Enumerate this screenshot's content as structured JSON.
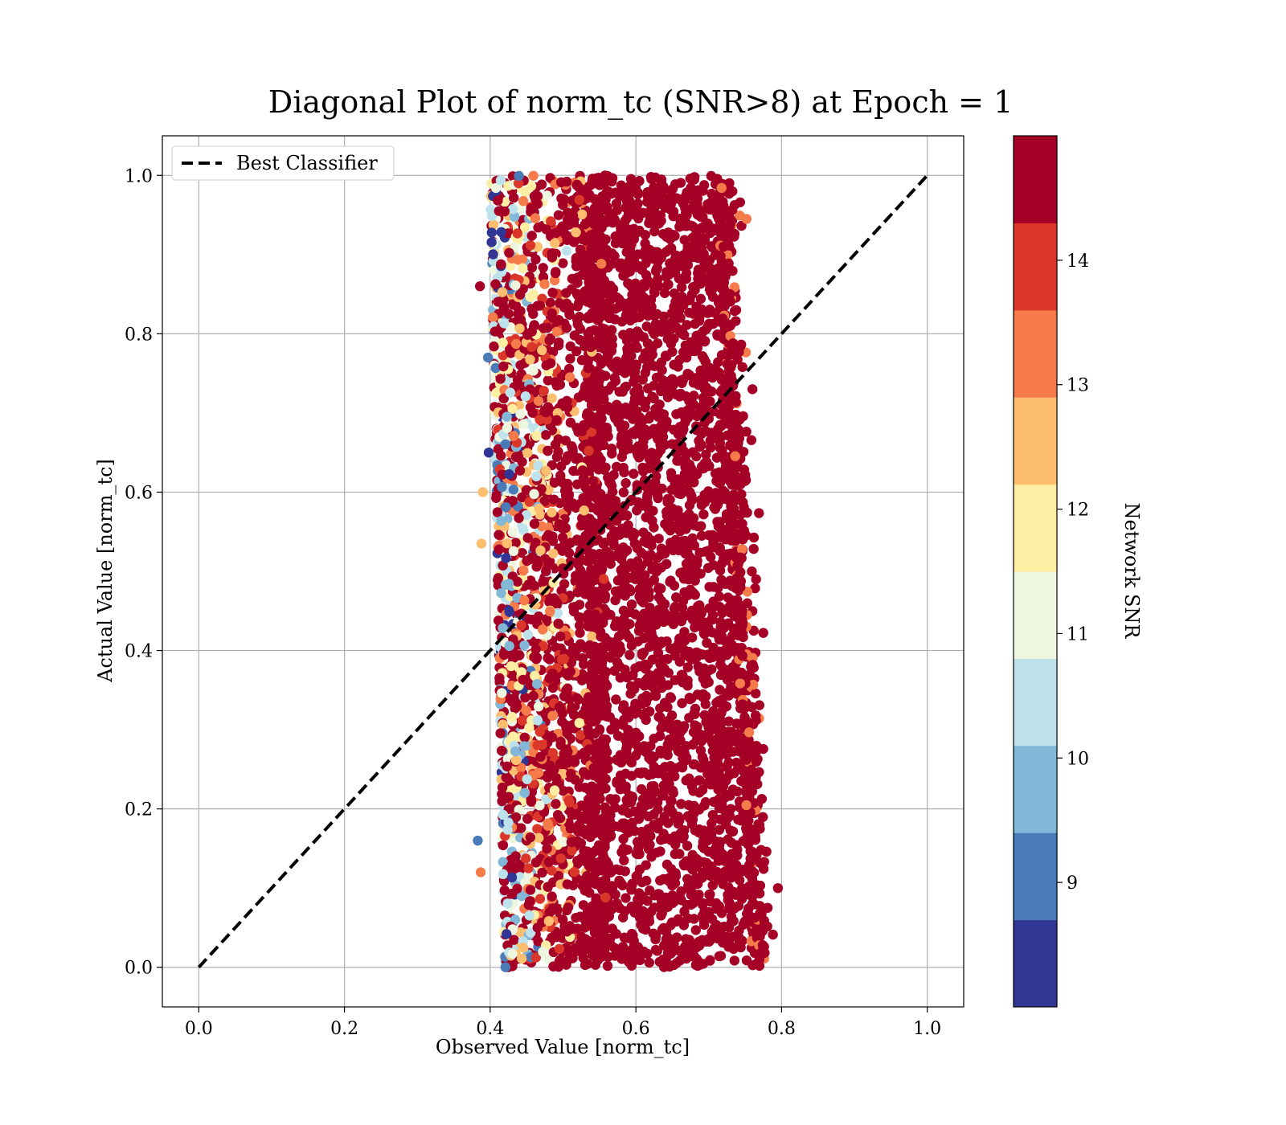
{
  "chart_data": {
    "type": "scatter",
    "title": "Diagonal Plot of norm_tc (SNR>8) at Epoch = 1",
    "xlabel": "Observed Value [norm_tc]",
    "ylabel": "Actual Value [norm_tc]",
    "xlim": [
      -0.05,
      1.05
    ],
    "ylim": [
      -0.05,
      1.05
    ],
    "x_ticks": [
      "0.0",
      "0.2",
      "0.4",
      "0.6",
      "0.8",
      "1.0"
    ],
    "y_ticks": [
      "0.0",
      "0.2",
      "0.4",
      "0.6",
      "0.8",
      "1.0"
    ],
    "grid": true,
    "legend": {
      "position": "upper-left",
      "entries": [
        "Best Classifier"
      ]
    },
    "reference_line": {
      "name": "Best Classifier",
      "x": [
        0,
        1
      ],
      "y": [
        0,
        1
      ],
      "style": "dashed",
      "color": "#000000"
    },
    "colorbar": {
      "label": "Network SNR",
      "range": [
        8,
        15
      ],
      "tick_values": [
        9,
        10,
        11,
        12,
        13,
        14
      ],
      "tick_labels": [
        "9",
        "10",
        "11",
        "12",
        "13",
        "14"
      ],
      "colors": [
        "#313695",
        "#4575b4",
        "#74add1",
        "#abd9e9",
        "#e0f3f8",
        "#ffffbf",
        "#fee090",
        "#fdae61",
        "#f46d43",
        "#d73027",
        "#a50026"
      ],
      "bins": [
        {
          "from": 8.0,
          "to": 8.7,
          "color": "#313695"
        },
        {
          "from": 8.7,
          "to": 9.4,
          "color": "#4a7ab7"
        },
        {
          "from": 9.4,
          "to": 10.1,
          "color": "#83b7d7"
        },
        {
          "from": 10.1,
          "to": 10.8,
          "color": "#bde2ec"
        },
        {
          "from": 10.8,
          "to": 11.5,
          "color": "#eef6e0"
        },
        {
          "from": 11.5,
          "to": 12.2,
          "color": "#feeea3"
        },
        {
          "from": 12.2,
          "to": 12.9,
          "color": "#fdbe70"
        },
        {
          "from": 12.9,
          "to": 13.6,
          "color": "#f57c4a"
        },
        {
          "from": 13.6,
          "to": 14.3,
          "color": "#da372a"
        },
        {
          "from": 14.3,
          "to": 15.0,
          "color": "#a50026"
        }
      ]
    },
    "scatter_summary": {
      "y_range": [
        0.0,
        1.0
      ],
      "x_band_core": [
        0.53,
        0.73
      ],
      "x_band_min": 0.38,
      "x_band_max": 0.8,
      "dominant_color": "#a50026"
    }
  }
}
